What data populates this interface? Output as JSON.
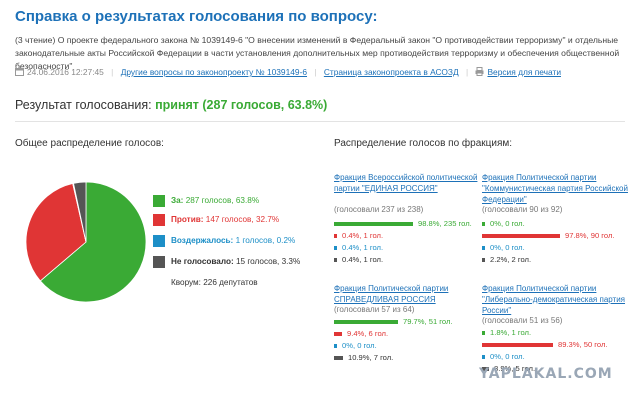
{
  "page": {
    "title": "Справка о результатах голосования по вопросу:",
    "description": "(3 чтение) О проекте федерального закона № 1039149-6 \"О внесении изменений в Федеральный закон \"О противодействии терроризму\" и отдельные законодательные акты Российской Федерации в части установления дополнительных мер противодействия терроризму и обеспечения общественной безопасности\"",
    "datetime": "24.06.2016 12:27:45",
    "links": {
      "other_questions": "Другие вопросы по законопроекту № 1039149-6",
      "bill_page": "Страница законопроекта в АСОЗД",
      "print_version": "Версия для печати"
    },
    "result_label": "Результат голосования:",
    "result_value": "принят (287 голосов, 63.8%)"
  },
  "colors": {
    "for": "#3aaa35",
    "against": "#e03535",
    "abstained": "#1d8fc7",
    "not_voted": "#555555",
    "link": "#1d71b8"
  },
  "overall": {
    "heading": "Общее распределение голосов:",
    "legend": [
      {
        "key": "for",
        "label": "За:",
        "text": "287 голосов, 63.8%"
      },
      {
        "key": "against",
        "label": "Против:",
        "text": "147 голосов, 32.7%"
      },
      {
        "key": "abstained",
        "label": "Воздержалось:",
        "text": "1 голосов, 0.2%"
      },
      {
        "key": "not_voted",
        "label": "Не голосовало:",
        "text": "15 голосов, 3.3%"
      }
    ],
    "quorum": "Кворум: 226 депутатов"
  },
  "chart_data": {
    "type": "pie",
    "categories": [
      "За",
      "Против",
      "Воздержалось",
      "Не голосовало"
    ],
    "values": [
      287,
      147,
      1,
      15
    ],
    "percents": [
      63.8,
      32.7,
      0.2,
      3.3
    ],
    "colors": [
      "#3aaa35",
      "#e03535",
      "#1d8fc7",
      "#555555"
    ]
  },
  "factions_heading": "Распределение голосов по фракциям:",
  "factions": [
    {
      "name": "Фракция Всероссийской политической партии \"ЕДИНАЯ РОССИЯ\"",
      "votes": "(голосовали 237 из 238)",
      "bars": [
        {
          "key": "for",
          "pct": 98.8,
          "text": "98.8%, 235 гол."
        },
        {
          "key": "against",
          "pct": 0.4,
          "text": "0.4%, 1 гол."
        },
        {
          "key": "abstained",
          "pct": 0.4,
          "text": "0.4%, 1 гол."
        },
        {
          "key": "not_voted",
          "pct": 0.4,
          "text": "0.4%, 1 гол."
        }
      ]
    },
    {
      "name": "Фракция Политической партии \"Коммунистическая партия Российской Федерации\"",
      "votes": "(голосовали 90 из 92)",
      "bars": [
        {
          "key": "for",
          "pct": 0,
          "text": "0%, 0 гол."
        },
        {
          "key": "against",
          "pct": 97.8,
          "text": "97.8%, 90 гол."
        },
        {
          "key": "abstained",
          "pct": 0,
          "text": "0%, 0 гол."
        },
        {
          "key": "not_voted",
          "pct": 2.2,
          "text": "2.2%, 2 гол."
        }
      ]
    },
    {
      "name": "Фракция Политической партии СПРАВЕДЛИВАЯ РОССИЯ",
      "votes": "(голосовали 57 из 64)",
      "bars": [
        {
          "key": "for",
          "pct": 79.7,
          "text": "79.7%, 51 гол."
        },
        {
          "key": "against",
          "pct": 9.4,
          "text": "9.4%, 6 гол."
        },
        {
          "key": "abstained",
          "pct": 0,
          "text": "0%, 0 гол."
        },
        {
          "key": "not_voted",
          "pct": 10.9,
          "text": "10.9%, 7 гол."
        }
      ]
    },
    {
      "name": "Фракция Политической партии \"Либерально-демократическая партия России\"",
      "votes": "(голосовали 51 из 56)",
      "bars": [
        {
          "key": "for",
          "pct": 1.8,
          "text": "1.8%, 1 гол."
        },
        {
          "key": "against",
          "pct": 89.3,
          "text": "89.3%, 50 гол."
        },
        {
          "key": "abstained",
          "pct": 0,
          "text": "0%, 0 гол."
        },
        {
          "key": "not_voted",
          "pct": 8.9,
          "text": "8.9%, 5 гол."
        }
      ]
    }
  ],
  "watermark": "YAPLAKAL.COM"
}
